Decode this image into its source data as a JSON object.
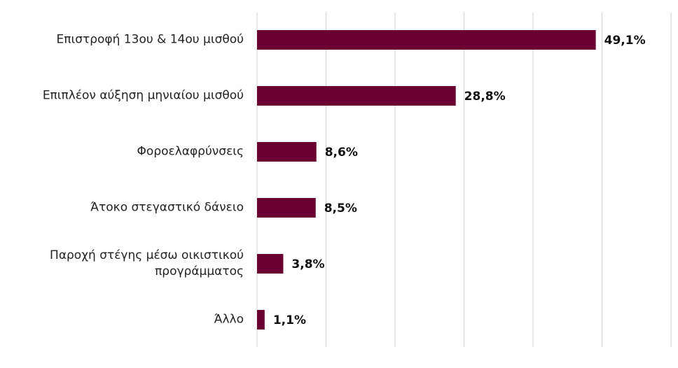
{
  "chart_data": {
    "type": "bar",
    "orientation": "horizontal",
    "categories": [
      "Επιστροφή 13ου & 14ου μισθού",
      "Επιπλέον αύξηση μηνιαίου μισθού",
      "Φοροελαφρύνσεις",
      "Άτοκο στεγαστικό δάνειο",
      "Παροχή στέγης μέσω οικιστικού προγράμματος",
      "Άλλο"
    ],
    "values": [
      49.1,
      28.8,
      8.6,
      8.5,
      3.8,
      1.1
    ],
    "value_labels": [
      "49,1%",
      "28,8%",
      "8,6%",
      "8,5%",
      "3,8%",
      "1,1%"
    ],
    "color": "#6a0032",
    "xlim": [
      0,
      60
    ],
    "xticks": [
      0,
      10,
      20,
      30,
      40,
      50,
      60
    ],
    "grid": true
  }
}
